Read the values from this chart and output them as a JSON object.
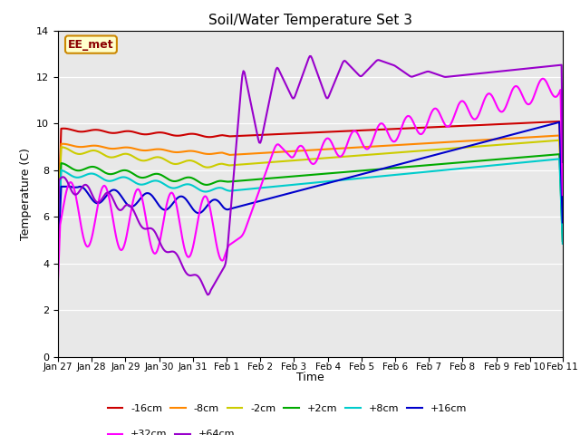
{
  "title": "Soil/Water Temperature Set 3",
  "xlabel": "Time",
  "ylabel": "Temperature (C)",
  "ylim": [
    0,
    14
  ],
  "yticks": [
    0,
    2,
    4,
    6,
    8,
    10,
    12,
    14
  ],
  "station_label": "EE_met",
  "series": [
    {
      "label": "-16cm",
      "color": "#cc0000",
      "lw": 1.5
    },
    {
      "label": "-8cm",
      "color": "#ff8800",
      "lw": 1.5
    },
    {
      "label": "-2cm",
      "color": "#cccc00",
      "lw": 1.5
    },
    {
      "label": "+2cm",
      "color": "#00aa00",
      "lw": 1.5
    },
    {
      "label": "+8cm",
      "color": "#00cccc",
      "lw": 1.5
    },
    {
      "label": "+16cm",
      "color": "#0000cc",
      "lw": 1.5
    },
    {
      "label": "+32cm",
      "color": "#ff00ff",
      "lw": 1.5
    },
    {
      "label": "+64cm",
      "color": "#9900cc",
      "lw": 1.5
    }
  ],
  "xtick_labels": [
    "Jan 27",
    "Jan 28",
    "Jan 29",
    "Jan 30",
    "Jan 31",
    "Feb 1",
    "Feb 2",
    "Feb 3",
    "Feb 4",
    "Feb 5",
    "Feb 6",
    "Feb 7",
    "Feb 8",
    "Feb 9",
    "Feb 10",
    "Feb 11"
  ],
  "n_points": 480
}
